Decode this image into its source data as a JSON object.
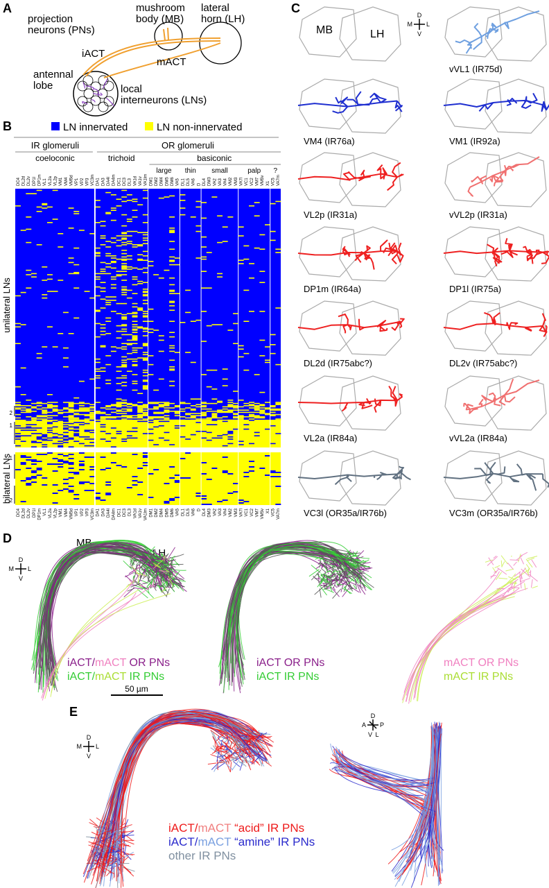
{
  "panel_a": {
    "letter": "A",
    "projection_neurons": [
      "projection",
      "neurons (PNs)"
    ],
    "mushroom_body": [
      "mushroom",
      "body (MB)"
    ],
    "lateral_horn": [
      "lateral",
      "horn (LH)"
    ],
    "iact": "iACT",
    "mact": "mACT",
    "antennal_lobe": [
      "antennal",
      "lobe"
    ],
    "local_interneurons": [
      "local",
      "interneurons (LNs)"
    ]
  },
  "panel_b": {
    "letter": "B",
    "legend": [
      "LN innervated",
      "LN non-innervated"
    ],
    "ir_glomeruli": "IR glomeruli",
    "or_glomeruli": "OR glomeruli",
    "coeloconic": "coeloconic",
    "trichoid": "trichoid",
    "basiconic": "basiconic",
    "subgroups": [
      "large",
      "thin",
      "small",
      "palp",
      "?"
    ],
    "columns": [
      "DC4",
      "DL2d",
      "DL2v",
      "DP1l",
      "DP1m",
      "VL1",
      "VL2a",
      "VL2p",
      "VM1",
      "VM4",
      "VM5d",
      "VP1",
      "VP2",
      "VP3",
      "VC3m",
      "DA1",
      "DA3",
      "DA4l",
      "DA4m",
      "DC1",
      "DC3",
      "DL3",
      "VA1d",
      "VA1v",
      "VA1lm",
      "DM1",
      "DM2",
      "DM4",
      "DM5",
      "DM6",
      "VA5",
      "DL1",
      "DL5",
      "VA6",
      "D",
      "DL4",
      "DM3",
      "VA2",
      "VA3",
      "VA4",
      "VM2",
      "VM3",
      "VA7l",
      "VC1",
      "VC2",
      "VM7",
      "VM5v",
      "X1",
      "VC5",
      "VA7m"
    ],
    "unilateral": "unilateral LNs",
    "bilateral": "bilateral LNs",
    "row_marks": [
      "2",
      "1",
      "1",
      "2"
    ]
  },
  "panel_c": {
    "letter": "C",
    "mb": "MB",
    "lh": "LH",
    "compass": {
      "d": "D",
      "v": "V",
      "m": "M",
      "l": "L"
    },
    "neurons": [
      "vVL1 (IR75d)",
      "VM4 (IR76a)",
      "VM1 (IR92a)",
      "VL2p (IR31a)",
      "vVL2p (IR31a)",
      "DP1m (IR64a)",
      "DP1l (IR75a)",
      "DL2d (IR75abc?)",
      "DL2v (IR75abc?)",
      "VL2a (IR84a)",
      "vVL2a (IR84a)",
      "VC3l (OR35a/IR76b)",
      "VC3m (OR35a/IR76b)"
    ]
  },
  "panel_d": {
    "letter": "D",
    "mb": "MB",
    "lh": "LH",
    "compass": {
      "d": "D",
      "v": "V",
      "m": "M",
      "l": "L"
    },
    "legends": [
      [
        [
          "iACT",
          "/",
          "mACT",
          " OR PNs"
        ],
        [
          "iACT",
          "/",
          "mACT",
          " IR PNs"
        ]
      ],
      [
        [
          "iACT OR PNs"
        ],
        [
          "iACT IR PNs"
        ]
      ],
      [
        [
          "mACT OR PNs"
        ],
        [
          "mACT IR PNs"
        ]
      ]
    ],
    "scale": "50 µm"
  },
  "panel_e": {
    "letter": "E",
    "compass": {
      "d": "D",
      "v": "V",
      "m": "M",
      "l": "L"
    },
    "compass_3d": {
      "a": "A",
      "p": "P",
      "d": "D",
      "v": "V",
      "l": "L"
    },
    "legend": [
      [
        "iACT",
        "/",
        "mACT",
        " “acid” IR PNs"
      ],
      [
        "iACT",
        "/",
        "mACT",
        " “amine” IR PNs"
      ],
      [
        "other IR PNs"
      ]
    ]
  }
}
